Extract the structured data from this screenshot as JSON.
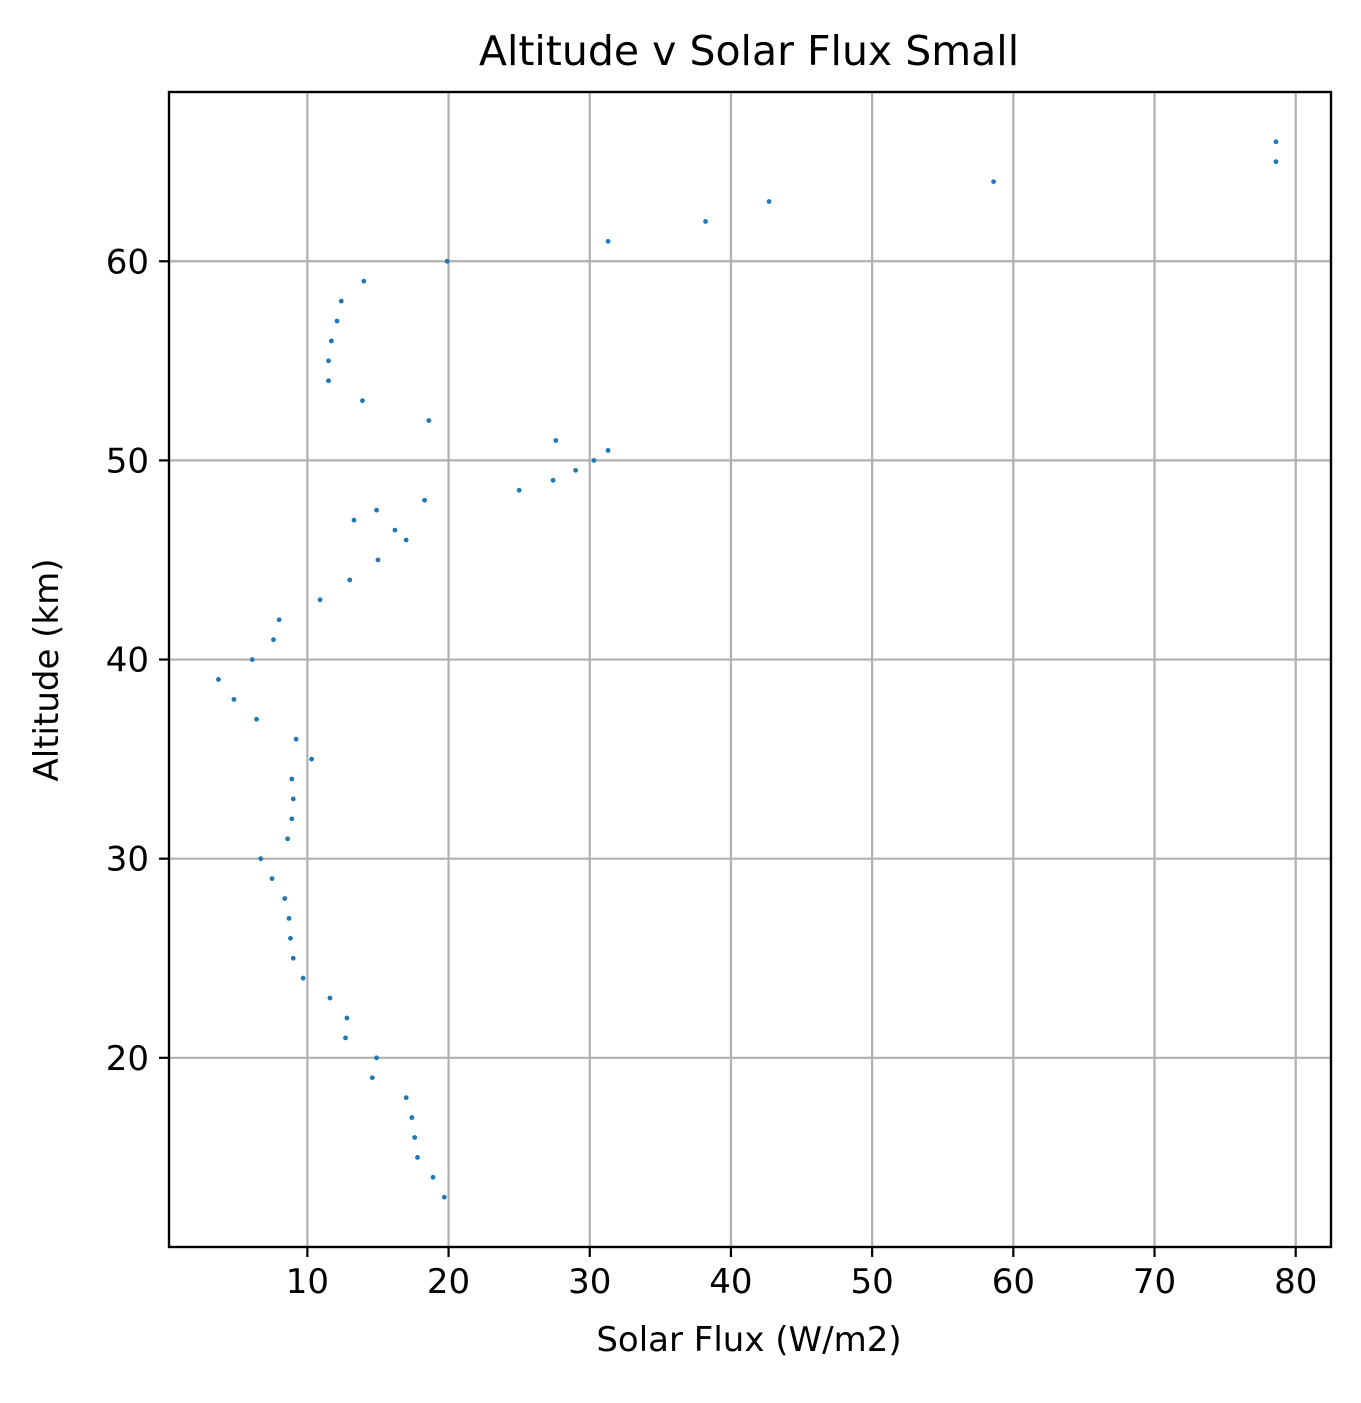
{
  "chart_data": {
    "type": "scatter",
    "title": "Altitude v Solar Flux Small",
    "xlabel": "Solar Flux (W/m2)",
    "ylabel": "Altitude (km)",
    "xlim": [
      0.2,
      82.5
    ],
    "ylim": [
      10.5,
      68.5
    ],
    "xticks": [
      10,
      20,
      30,
      40,
      50,
      60,
      70,
      80
    ],
    "yticks": [
      20,
      30,
      40,
      50,
      60
    ],
    "grid": true,
    "color": "#1f77b4",
    "points": [
      {
        "x": 19.7,
        "y": 13
      },
      {
        "x": 18.9,
        "y": 14
      },
      {
        "x": 17.8,
        "y": 15
      },
      {
        "x": 17.6,
        "y": 16
      },
      {
        "x": 17.4,
        "y": 17
      },
      {
        "x": 17.0,
        "y": 18
      },
      {
        "x": 14.6,
        "y": 19
      },
      {
        "x": 14.9,
        "y": 20
      },
      {
        "x": 12.7,
        "y": 21
      },
      {
        "x": 12.8,
        "y": 22
      },
      {
        "x": 11.6,
        "y": 23
      },
      {
        "x": 9.7,
        "y": 24
      },
      {
        "x": 9.0,
        "y": 25
      },
      {
        "x": 8.8,
        "y": 26
      },
      {
        "x": 8.7,
        "y": 27
      },
      {
        "x": 8.4,
        "y": 28
      },
      {
        "x": 7.5,
        "y": 29
      },
      {
        "x": 6.7,
        "y": 30
      },
      {
        "x": 8.6,
        "y": 31
      },
      {
        "x": 8.9,
        "y": 32
      },
      {
        "x": 9.0,
        "y": 33
      },
      {
        "x": 8.9,
        "y": 34
      },
      {
        "x": 10.3,
        "y": 35
      },
      {
        "x": 9.2,
        "y": 36
      },
      {
        "x": 6.4,
        "y": 37
      },
      {
        "x": 4.8,
        "y": 38
      },
      {
        "x": 3.7,
        "y": 39
      },
      {
        "x": 6.1,
        "y": 40
      },
      {
        "x": 7.6,
        "y": 41
      },
      {
        "x": 8.0,
        "y": 42
      },
      {
        "x": 10.9,
        "y": 43
      },
      {
        "x": 13.0,
        "y": 44
      },
      {
        "x": 15.0,
        "y": 45
      },
      {
        "x": 17.0,
        "y": 46
      },
      {
        "x": 16.2,
        "y": 46.5
      },
      {
        "x": 13.3,
        "y": 47
      },
      {
        "x": 14.9,
        "y": 47.5
      },
      {
        "x": 18.3,
        "y": 48
      },
      {
        "x": 25.0,
        "y": 48.5
      },
      {
        "x": 27.4,
        "y": 49
      },
      {
        "x": 29.0,
        "y": 49.5
      },
      {
        "x": 30.3,
        "y": 50
      },
      {
        "x": 31.3,
        "y": 50.5
      },
      {
        "x": 27.6,
        "y": 51
      },
      {
        "x": 18.6,
        "y": 52
      },
      {
        "x": 13.9,
        "y": 53
      },
      {
        "x": 11.5,
        "y": 54
      },
      {
        "x": 11.5,
        "y": 55
      },
      {
        "x": 11.7,
        "y": 56
      },
      {
        "x": 12.1,
        "y": 57
      },
      {
        "x": 12.4,
        "y": 58
      },
      {
        "x": 14.0,
        "y": 59
      },
      {
        "x": 19.9,
        "y": 60
      },
      {
        "x": 31.3,
        "y": 61
      },
      {
        "x": 38.2,
        "y": 62
      },
      {
        "x": 42.7,
        "y": 63
      },
      {
        "x": 58.6,
        "y": 64
      },
      {
        "x": 78.6,
        "y": 65
      },
      {
        "x": 78.6,
        "y": 66
      }
    ]
  }
}
